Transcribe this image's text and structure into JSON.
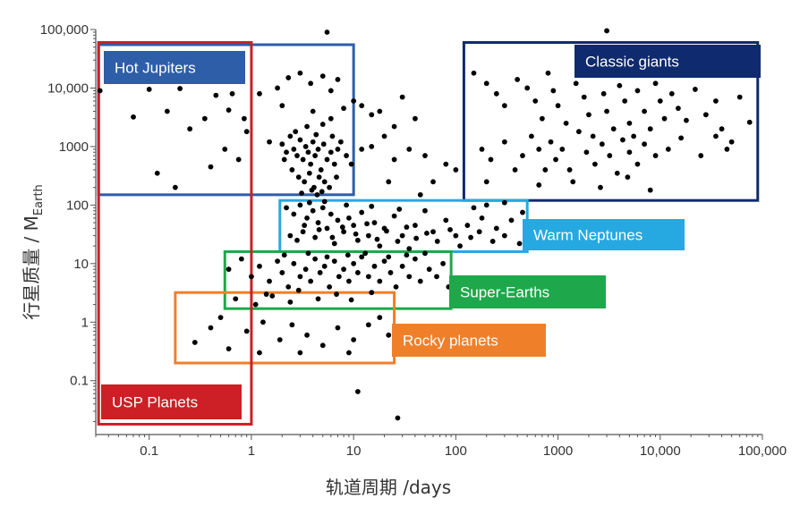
{
  "chart_data": {
    "type": "scatter",
    "xlabel": "轨道周期 /days",
    "ylabel": "行星质量 / M",
    "ylabel_subscript": "Earth",
    "xscale": "log",
    "yscale": "log",
    "xlim": [
      0.03,
      100000
    ],
    "ylim": [
      0.012,
      100000
    ],
    "x_ticks": [
      0.1,
      1,
      10,
      100,
      1000,
      10000,
      100000
    ],
    "x_tick_labels": [
      "0.1",
      "1",
      "10",
      "100",
      "1000",
      "10,000",
      "100,000"
    ],
    "y_ticks": [
      0.1,
      1,
      10,
      100,
      1000,
      10000,
      100000
    ],
    "y_tick_labels": [
      "0.1",
      "1",
      "10",
      "100",
      "1000",
      "10,000",
      "100,000"
    ],
    "regions": [
      {
        "label": "Hot Jupiters",
        "color": "#2e5ea8",
        "x_range": [
          0.032,
          10
        ],
        "y_range": [
          150,
          55000
        ]
      },
      {
        "label": "Classic giants",
        "color": "#0f2a6e",
        "x_range": [
          120,
          90000
        ],
        "y_range": [
          120,
          60000
        ]
      },
      {
        "label": "Warm Neptunes",
        "color": "#26a9e0",
        "x_range": [
          1.9,
          500
        ],
        "y_range": [
          16,
          120
        ]
      },
      {
        "label": "Super-Earths",
        "color": "#1fa84b",
        "x_range": [
          0.55,
          90
        ],
        "y_range": [
          1.7,
          16
        ]
      },
      {
        "label": "Rocky planets",
        "color": "#f07f2a",
        "x_range": [
          0.18,
          25
        ],
        "y_range": [
          0.2,
          3.2
        ]
      },
      {
        "label": "USP Planets",
        "color": "#cc1f26",
        "x_range": [
          0.032,
          1
        ],
        "y_range": [
          0.018,
          60000
        ]
      }
    ],
    "points": [
      [
        0.033,
        9000
      ],
      [
        0.07,
        3200
      ],
      [
        0.1,
        9500
      ],
      [
        0.15,
        4000
      ],
      [
        0.2,
        9800
      ],
      [
        0.25,
        2000
      ],
      [
        0.12,
        350
      ],
      [
        0.45,
        7500
      ],
      [
        0.6,
        4200
      ],
      [
        0.55,
        900
      ],
      [
        0.75,
        600
      ],
      [
        0.85,
        3000
      ],
      [
        0.4,
        450
      ],
      [
        0.18,
        200
      ],
      [
        0.35,
        3000
      ],
      [
        0.9,
        1800
      ],
      [
        0.65,
        8000
      ],
      [
        1.5,
        1200
      ],
      [
        2,
        1100
      ],
      [
        2.2,
        800
      ],
      [
        2.4,
        1500
      ],
      [
        2.6,
        900
      ],
      [
        2.8,
        700
      ],
      [
        3.0,
        1300
      ],
      [
        3.2,
        600
      ],
      [
        3.4,
        1000
      ],
      [
        3.6,
        800
      ],
      [
        3.8,
        500
      ],
      [
        4.0,
        1200
      ],
      [
        4.2,
        700
      ],
      [
        4.5,
        900
      ],
      [
        4.8,
        400
      ],
      [
        5.1,
        1100
      ],
      [
        5.5,
        600
      ],
      [
        6.0,
        800
      ],
      [
        6.5,
        500
      ],
      [
        7.0,
        900
      ],
      [
        2.5,
        400
      ],
      [
        2.9,
        300
      ],
      [
        3.3,
        250
      ],
      [
        3.7,
        350
      ],
      [
        4.1,
        200
      ],
      [
        4.6,
        300
      ],
      [
        5.2,
        250
      ],
      [
        5.8,
        200
      ],
      [
        2.1,
        600
      ],
      [
        2.7,
        1800
      ],
      [
        3.5,
        2200
      ],
      [
        4.3,
        1600
      ],
      [
        5.0,
        2400
      ],
      [
        6.2,
        1500
      ],
      [
        7.5,
        1200
      ],
      [
        8.5,
        700
      ],
      [
        9.5,
        500
      ],
      [
        3.1,
        160
      ],
      [
        3.9,
        180
      ],
      [
        4.4,
        150
      ],
      [
        4.9,
        170
      ],
      [
        6.8,
        300
      ],
      [
        1.8,
        10000
      ],
      [
        2.3,
        15000
      ],
      [
        3.0,
        18000
      ],
      [
        3.8,
        12000
      ],
      [
        5.0,
        16000
      ],
      [
        6.0,
        9000
      ],
      [
        7.0,
        14000
      ],
      [
        1.2,
        8000
      ],
      [
        2.0,
        5000
      ],
      [
        4.0,
        4000
      ],
      [
        6.0,
        3000
      ],
      [
        8.0,
        4500
      ],
      [
        10,
        6000
      ],
      [
        12,
        5000
      ],
      [
        15,
        3500
      ],
      [
        18,
        4000
      ],
      [
        25,
        2200
      ],
      [
        30,
        7000
      ],
      [
        40,
        3000
      ],
      [
        20,
        1500
      ],
      [
        15,
        1000
      ],
      [
        12,
        900
      ],
      [
        25,
        600
      ],
      [
        35,
        900
      ],
      [
        50,
        700
      ],
      [
        80,
        500
      ],
      [
        60,
        250
      ],
      [
        100,
        400
      ],
      [
        22,
        250
      ],
      [
        45,
        150
      ],
      [
        2.2,
        90
      ],
      [
        2.6,
        70
      ],
      [
        3.0,
        100
      ],
      [
        3.5,
        60
      ],
      [
        4.0,
        80
      ],
      [
        4.5,
        50
      ],
      [
        5.0,
        90
      ],
      [
        5.5,
        40
      ],
      [
        6.0,
        70
      ],
      [
        7.0,
        55
      ],
      [
        8.0,
        35
      ],
      [
        9.0,
        60
      ],
      [
        10,
        45
      ],
      [
        12,
        75
      ],
      [
        14,
        30
      ],
      [
        16,
        50
      ],
      [
        20,
        40
      ],
      [
        25,
        65
      ],
      [
        30,
        30
      ],
      [
        40,
        45
      ],
      [
        50,
        80
      ],
      [
        60,
        35
      ],
      [
        80,
        55
      ],
      [
        100,
        30
      ],
      [
        130,
        45
      ],
      [
        180,
        60
      ],
      [
        250,
        40
      ],
      [
        350,
        55
      ],
      [
        2.8,
        25
      ],
      [
        3.2,
        35
      ],
      [
        4.2,
        28
      ],
      [
        6.5,
        22
      ],
      [
        11,
        25
      ],
      [
        18,
        20
      ],
      [
        35,
        18
      ],
      [
        150,
        90
      ],
      [
        200,
        100
      ],
      [
        300,
        110
      ],
      [
        450,
        75
      ],
      [
        3.7,
        110
      ],
      [
        5.2,
        115
      ],
      [
        8.5,
        100
      ],
      [
        15,
        95
      ],
      [
        28,
        85
      ],
      [
        0.6,
        8
      ],
      [
        0.8,
        12
      ],
      [
        1.0,
        6
      ],
      [
        1.2,
        9
      ],
      [
        1.5,
        5
      ],
      [
        1.8,
        11
      ],
      [
        2.0,
        7
      ],
      [
        2.3,
        4
      ],
      [
        2.6,
        10
      ],
      [
        3.0,
        6
      ],
      [
        3.4,
        8
      ],
      [
        3.8,
        5
      ],
      [
        4.2,
        12
      ],
      [
        4.7,
        7
      ],
      [
        5.2,
        9
      ],
      [
        5.8,
        4
      ],
      [
        6.5,
        11
      ],
      [
        7.2,
        6
      ],
      [
        8.0,
        8
      ],
      [
        9.0,
        5
      ],
      [
        10,
        10
      ],
      [
        11,
        7
      ],
      [
        12,
        13
      ],
      [
        14,
        6
      ],
      [
        16,
        9
      ],
      [
        18,
        5
      ],
      [
        20,
        11
      ],
      [
        23,
        7
      ],
      [
        26,
        4
      ],
      [
        30,
        9
      ],
      [
        35,
        6
      ],
      [
        40,
        12
      ],
      [
        45,
        5
      ],
      [
        55,
        8
      ],
      [
        65,
        6
      ],
      [
        75,
        10
      ],
      [
        85,
        4
      ],
      [
        2.1,
        14
      ],
      [
        3.6,
        15
      ],
      [
        5.5,
        13
      ],
      [
        8.8,
        14
      ],
      [
        13,
        15
      ],
      [
        22,
        13
      ],
      [
        33,
        14
      ],
      [
        50,
        15
      ],
      [
        1.4,
        3
      ],
      [
        2.9,
        3.5
      ],
      [
        6.8,
        3
      ],
      [
        15,
        3.2
      ],
      [
        0.7,
        2.5
      ],
      [
        1.1,
        2.0
      ],
      [
        1.6,
        2.8
      ],
      [
        2.4,
        2.2
      ],
      [
        4.5,
        2.5
      ],
      [
        9.5,
        2.4
      ],
      [
        0.28,
        0.45
      ],
      [
        0.4,
        0.8
      ],
      [
        0.5,
        1.2
      ],
      [
        0.9,
        0.7
      ],
      [
        1.3,
        1.0
      ],
      [
        1.9,
        0.5
      ],
      [
        2.5,
        0.9
      ],
      [
        3.5,
        0.6
      ],
      [
        5,
        0.4
      ],
      [
        7,
        0.8
      ],
      [
        10,
        0.5
      ],
      [
        14,
        0.9
      ],
      [
        0.6,
        0.35
      ],
      [
        1.2,
        0.3
      ],
      [
        3.0,
        0.3
      ],
      [
        9,
        0.3
      ],
      [
        18,
        1.2
      ],
      [
        22,
        0.6
      ],
      [
        11,
        0.065
      ],
      [
        27,
        0.023
      ],
      [
        150,
        18000
      ],
      [
        200,
        12000
      ],
      [
        250,
        8000
      ],
      [
        300,
        5000
      ],
      [
        400,
        14000
      ],
      [
        500,
        10000
      ],
      [
        600,
        6000
      ],
      [
        700,
        3000
      ],
      [
        800,
        18000
      ],
      [
        900,
        9000
      ],
      [
        1000,
        5000
      ],
      [
        1200,
        2500
      ],
      [
        1500,
        12000
      ],
      [
        1800,
        7000
      ],
      [
        2000,
        3500
      ],
      [
        2200,
        1500
      ],
      [
        2500,
        20000
      ],
      [
        2800,
        8000
      ],
      [
        3000,
        4000
      ],
      [
        3500,
        2000
      ],
      [
        4000,
        11000
      ],
      [
        4500,
        6000
      ],
      [
        5000,
        2500
      ],
      [
        5500,
        1500
      ],
      [
        6000,
        9000
      ],
      [
        7000,
        4000
      ],
      [
        8000,
        2000
      ],
      [
        9000,
        12000
      ],
      [
        10000,
        6000
      ],
      [
        11000,
        3000
      ],
      [
        13000,
        8000
      ],
      [
        15000,
        4500
      ],
      [
        18000,
        2800
      ],
      [
        22000,
        9500
      ],
      [
        28000,
        3500
      ],
      [
        35000,
        6000
      ],
      [
        40000,
        2000
      ],
      [
        50000,
        1200
      ],
      [
        60000,
        7000
      ],
      [
        75000,
        2600
      ],
      [
        180,
        900
      ],
      [
        220,
        600
      ],
      [
        300,
        1200
      ],
      [
        380,
        400
      ],
      [
        450,
        700
      ],
      [
        550,
        1500
      ],
      [
        650,
        900
      ],
      [
        750,
        400
      ],
      [
        850,
        1200
      ],
      [
        950,
        600
      ],
      [
        1100,
        900
      ],
      [
        1300,
        400
      ],
      [
        1600,
        1800
      ],
      [
        1900,
        800
      ],
      [
        2300,
        500
      ],
      [
        2700,
        1100
      ],
      [
        3200,
        700
      ],
      [
        3800,
        350
      ],
      [
        4300,
        1300
      ],
      [
        5000,
        800
      ],
      [
        6000,
        500
      ],
      [
        7000,
        1100
      ],
      [
        9000,
        700
      ],
      [
        12000,
        900
      ],
      [
        16000,
        1400
      ],
      [
        25000,
        700
      ],
      [
        35000,
        1500
      ],
      [
        45000,
        900
      ],
      [
        1400,
        250
      ],
      [
        2600,
        200
      ],
      [
        4800,
        300
      ],
      [
        8000,
        180
      ],
      [
        200,
        250
      ],
      [
        650,
        220
      ],
      [
        5.5,
        90000
      ],
      [
        3000,
        95000
      ],
      [
        2.4,
        30
      ],
      [
        3.3,
        45
      ],
      [
        4.6,
        38
      ],
      [
        6.2,
        28
      ],
      [
        7.8,
        42
      ],
      [
        10.5,
        32
      ],
      [
        13.5,
        48
      ],
      [
        17,
        26
      ],
      [
        21,
        36
      ],
      [
        27,
        24
      ],
      [
        33,
        42
      ],
      [
        41,
        27
      ],
      [
        52,
        33
      ],
      [
        66,
        24
      ],
      [
        88,
        38
      ],
      [
        110,
        20
      ],
      [
        140,
        28
      ],
      [
        170,
        35
      ],
      [
        230,
        24
      ],
      [
        300,
        30
      ],
      [
        420,
        22
      ]
    ]
  }
}
